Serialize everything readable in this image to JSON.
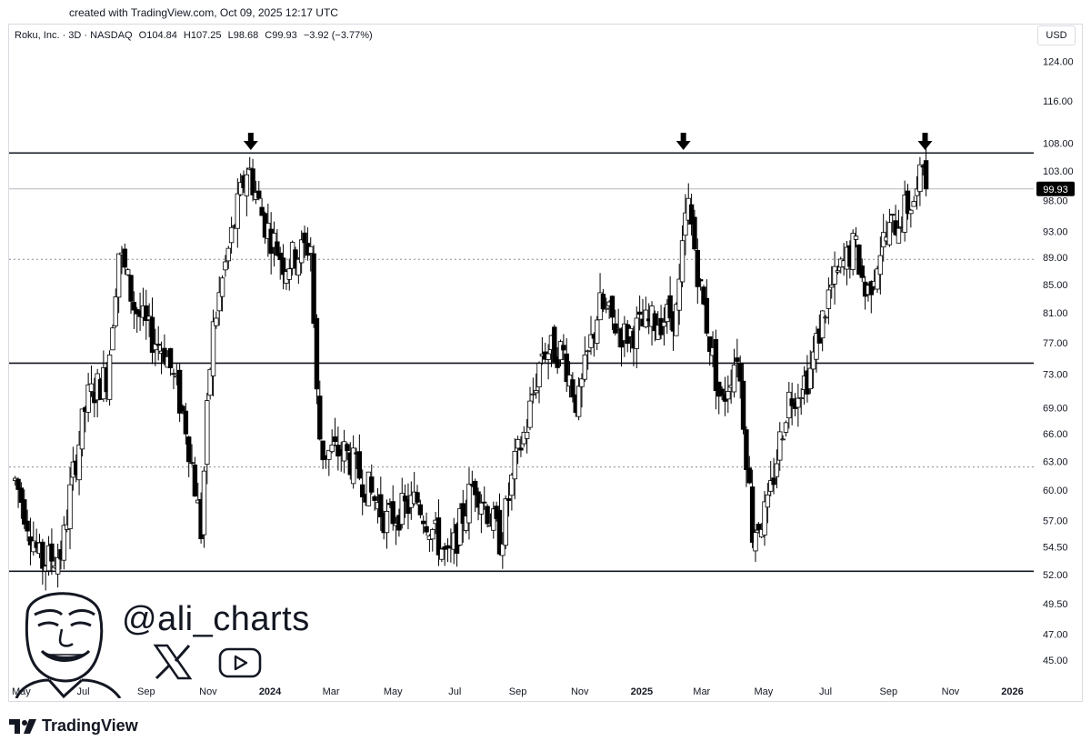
{
  "header": {
    "created_text": "created with TradingView.com, Oct 09, 2025 12:17 UTC"
  },
  "legend": {
    "symbol": "Roku, Inc. · 3D · NASDAQ",
    "open": "O104.84",
    "high": "H107.25",
    "low": "L98.68",
    "close": "C99.93",
    "change": "−3.92 (−3.77%)"
  },
  "currency": "USD",
  "branding": {
    "handle": "@ali_charts",
    "tradingview_label": "TradingView",
    "icons": [
      "x-logo-icon",
      "youtube-icon",
      "tradingview-logo-icon",
      "arrow-down-icon"
    ]
  },
  "colors": {
    "up_body": "#ffffff",
    "down_body": "#000000",
    "wick": "#000000",
    "price_label_bg": "#000000",
    "price_label_text": "#ffffff"
  },
  "chart_data": {
    "type": "candlestick",
    "title": "Roku, Inc. · 3D · NASDAQ",
    "interval": "3D",
    "y_scale": "log",
    "ylim": [
      43.5,
      132
    ],
    "y_ticks": [
      "124.00",
      "116.00",
      "108.00",
      "103.00",
      "98.00",
      "93.00",
      "89.00",
      "85.00",
      "81.00",
      "77.00",
      "73.00",
      "69.00",
      "66.00",
      "63.00",
      "60.00",
      "57.00",
      "54.50",
      "52.00",
      "49.50",
      "47.00",
      "45.00"
    ],
    "x_ticks": [
      "May",
      "Jul",
      "Sep",
      "Nov",
      "2024",
      "Mar",
      "May",
      "Jul",
      "Sep",
      "Nov",
      "2025",
      "Mar",
      "May",
      "Jul",
      "Sep",
      "Nov",
      "2026"
    ],
    "bold_x_ticks": [
      "2024",
      "2025",
      "2026"
    ],
    "last_price": "99.93",
    "horizontal_lines": [
      {
        "value": 106.2,
        "style": "solid"
      },
      {
        "value": 74.4,
        "style": "solid"
      },
      {
        "value": 52.3,
        "style": "solid"
      },
      {
        "value": 88.7,
        "style": "dashed"
      },
      {
        "value": 62.4,
        "style": "dashed"
      },
      {
        "value": 99.93,
        "style": "price-line"
      }
    ],
    "arrows": [
      {
        "date": "Dec 2023",
        "marks": "resistance touch"
      },
      {
        "date": "Feb 2025",
        "marks": "resistance touch"
      },
      {
        "date": "Oct 2025",
        "marks": "resistance touch"
      }
    ],
    "waypoints": [
      [
        "2023-04-25",
        61.0
      ],
      [
        "2023-05-20",
        53.0
      ],
      [
        "2023-06-10",
        54.0
      ],
      [
        "2023-06-20",
        61.0
      ],
      [
        "2023-07-05",
        70.0
      ],
      [
        "2023-07-25",
        73.0
      ],
      [
        "2023-08-05",
        90.0
      ],
      [
        "2023-08-20",
        82.0
      ],
      [
        "2023-09-05",
        78.0
      ],
      [
        "2023-09-20",
        76.0
      ],
      [
        "2023-10-10",
        67.0
      ],
      [
        "2023-10-25",
        56.0
      ],
      [
        "2023-11-05",
        78.0
      ],
      [
        "2023-11-25",
        93.0
      ],
      [
        "2023-12-10",
        104.0
      ],
      [
        "2023-12-25",
        95.0
      ],
      [
        "2024-01-15",
        88.0
      ],
      [
        "2024-02-10",
        91.0
      ],
      [
        "2024-02-15",
        72.0
      ],
      [
        "2024-02-20",
        64.0
      ],
      [
        "2024-03-15",
        64.0
      ],
      [
        "2024-04-25",
        57.0
      ],
      [
        "2024-05-25",
        59.0
      ],
      [
        "2024-06-25",
        53.0
      ],
      [
        "2024-07-20",
        61.0
      ],
      [
        "2024-08-15",
        55.0
      ],
      [
        "2024-08-30",
        63.0
      ],
      [
        "2024-09-10",
        67.0
      ],
      [
        "2024-09-25",
        76.0
      ],
      [
        "2024-10-15",
        76.0
      ],
      [
        "2024-10-30",
        69.0
      ],
      [
        "2024-11-20",
        82.0
      ],
      [
        "2024-12-15",
        78.0
      ],
      [
        "2025-01-15",
        80.0
      ],
      [
        "2025-02-05",
        81.0
      ],
      [
        "2025-02-15",
        98.0
      ],
      [
        "2025-02-28",
        84.0
      ],
      [
        "2025-03-20",
        69.0
      ],
      [
        "2025-04-05",
        76.0
      ],
      [
        "2025-04-20",
        56.0
      ],
      [
        "2025-05-05",
        58.0
      ],
      [
        "2025-05-25",
        70.0
      ],
      [
        "2025-06-15",
        73.0
      ],
      [
        "2025-07-05",
        84.0
      ],
      [
        "2025-07-30",
        91.0
      ],
      [
        "2025-08-10",
        83.0
      ],
      [
        "2025-08-25",
        91.0
      ],
      [
        "2025-09-15",
        96.0
      ],
      [
        "2025-09-30",
        99.0
      ],
      [
        "2025-10-05",
        104.8
      ],
      [
        "2025-10-09",
        99.93
      ]
    ]
  }
}
